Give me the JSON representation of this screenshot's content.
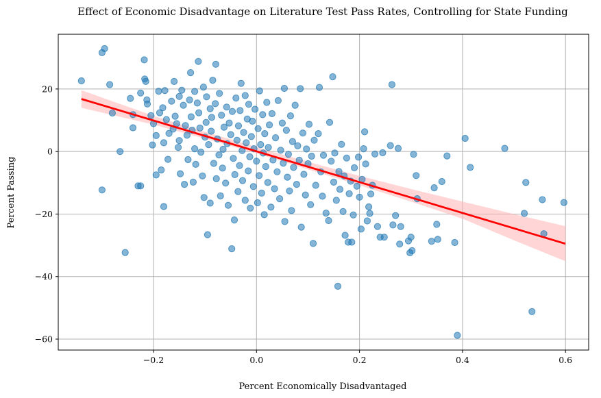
{
  "chart_data": {
    "type": "scatter",
    "title": "Effect of Economic Disadvantage on Literature Test Pass Rates, Controlling for State Funding",
    "xlabel": "Percent Economically Disadvantaged",
    "ylabel": "Percent Passing",
    "xlim": [
      -0.385,
      0.645
    ],
    "ylim": [
      -63.5,
      37.5
    ],
    "xticks": [
      -0.2,
      0.0,
      0.2,
      0.4,
      0.6
    ],
    "xtick_labels": [
      "−0.2",
      "0.0",
      "0.2",
      "0.4",
      "0.6"
    ],
    "yticks": [
      -60,
      -40,
      -20,
      0,
      20
    ],
    "ytick_labels": [
      "−60",
      "−40",
      "−20",
      "0",
      "20"
    ],
    "grid": true,
    "point_color": "#1f77b4",
    "fit_color": "#ff0000",
    "band_color": "#ffb3b3",
    "fit_line": {
      "x": [
        -0.34,
        0.6
      ],
      "y": [
        16.8,
        -29.5
      ]
    },
    "confidence_band": {
      "x": [
        -0.34,
        -0.2,
        -0.1,
        0.0,
        0.1,
        0.2,
        0.3,
        0.4,
        0.5,
        0.6
      ],
      "upper": [
        19.6,
        11.4,
        6.3,
        1.4,
        -3.3,
        -7.8,
        -12.0,
        -16.0,
        -20.0,
        -23.9
      ],
      "lower": [
        14.0,
        8.6,
        4.1,
        -0.6,
        -5.7,
        -10.8,
        -16.0,
        -21.5,
        -28.4,
        -35.1
      ]
    },
    "points": [
      [
        -0.34,
        22.6
      ],
      [
        -0.3,
        31.6
      ],
      [
        -0.295,
        32.9
      ],
      [
        -0.285,
        21.4
      ],
      [
        -0.28,
        12.3
      ],
      [
        -0.3,
        -12.3
      ],
      [
        -0.265,
        0
      ],
      [
        -0.255,
        -32.3
      ],
      [
        -0.245,
        17
      ],
      [
        -0.24,
        11.8
      ],
      [
        -0.24,
        7.6
      ],
      [
        -0.23,
        -11
      ],
      [
        -0.225,
        -11
      ],
      [
        -0.225,
        18.7
      ],
      [
        -0.218,
        29.3
      ],
      [
        -0.217,
        23.2
      ],
      [
        -0.215,
        22.4
      ],
      [
        -0.213,
        16.5
      ],
      [
        -0.212,
        15.2
      ],
      [
        -0.205,
        11.5
      ],
      [
        -0.2,
        8.9
      ],
      [
        -0.202,
        2.1
      ],
      [
        -0.195,
        -7.5
      ],
      [
        -0.195,
        5.1
      ],
      [
        -0.19,
        19.3
      ],
      [
        -0.188,
        12.4
      ],
      [
        -0.185,
        -5.9
      ],
      [
        -0.182,
        14
      ],
      [
        -0.18,
        -17.6
      ],
      [
        -0.18,
        2.8
      ],
      [
        -0.178,
        19.5
      ],
      [
        -0.175,
        10.2
      ],
      [
        -0.172,
        -2.5
      ],
      [
        -0.17,
        5.8
      ],
      [
        -0.165,
        16.1
      ],
      [
        -0.162,
        7.2
      ],
      [
        -0.16,
        22.4
      ],
      [
        -0.158,
        11.3
      ],
      [
        -0.155,
        8.9
      ],
      [
        -0.152,
        1.3
      ],
      [
        -0.15,
        17.6
      ],
      [
        -0.15,
        3.5
      ],
      [
        -0.148,
        -7.1
      ],
      [
        -0.145,
        19.6
      ],
      [
        -0.142,
        14.8
      ],
      [
        -0.14,
        -10.5
      ],
      [
        -0.138,
        8.3
      ],
      [
        -0.135,
        5.2
      ],
      [
        -0.133,
        -2.6
      ],
      [
        -0.13,
        16.5
      ],
      [
        -0.128,
        25.2
      ],
      [
        -0.127,
        11.1
      ],
      [
        -0.125,
        6.8
      ],
      [
        -0.123,
        -9.8
      ],
      [
        -0.12,
        0.9
      ],
      [
        -0.12,
        19.2
      ],
      [
        -0.118,
        -4.1
      ],
      [
        -0.115,
        15.5
      ],
      [
        -0.113,
        28.8
      ],
      [
        -0.112,
        12.4
      ],
      [
        -0.11,
        7.5
      ],
      [
        -0.108,
        -0.2
      ],
      [
        -0.105,
        -7.8
      ],
      [
        -0.103,
        20.6
      ],
      [
        -0.102,
        -14.7
      ],
      [
        -0.1,
        4.6
      ],
      [
        -0.098,
        9.3
      ],
      [
        -0.097,
        17.5
      ],
      [
        -0.095,
        -26.6
      ],
      [
        -0.093,
        2.2
      ],
      [
        -0.09,
        13.7
      ],
      [
        -0.09,
        -16.5
      ],
      [
        -0.088,
        6.5
      ],
      [
        -0.087,
        10.9
      ],
      [
        -0.085,
        22.8
      ],
      [
        -0.083,
        -3.8
      ],
      [
        -0.08,
        15.3
      ],
      [
        -0.079,
        27.9
      ],
      [
        -0.078,
        -8.7
      ],
      [
        -0.076,
        4
      ],
      [
        -0.073,
        -1.1
      ],
      [
        -0.072,
        18.6
      ],
      [
        -0.07,
        -14.2
      ],
      [
        -0.068,
        11.6
      ],
      [
        -0.066,
        -5.3
      ],
      [
        -0.065,
        0.7
      ],
      [
        -0.063,
        7.8
      ],
      [
        -0.06,
        -10.1
      ],
      [
        -0.058,
        14.2
      ],
      [
        -0.057,
        2.5
      ],
      [
        -0.055,
        -17.2
      ],
      [
        -0.053,
        9.1
      ],
      [
        -0.05,
        5.4
      ],
      [
        -0.048,
        -31.1
      ],
      [
        -0.047,
        12.8
      ],
      [
        -0.045,
        -2.2
      ],
      [
        -0.043,
        -21.9
      ],
      [
        -0.042,
        -7.4
      ],
      [
        -0.04,
        17.1
      ],
      [
        -0.038,
        3.6
      ],
      [
        -0.036,
        -12.8
      ],
      [
        -0.035,
        8.2
      ],
      [
        -0.033,
        -4.5
      ],
      [
        -0.032,
        13.1
      ],
      [
        -0.03,
        21.8
      ],
      [
        -0.028,
        0.3
      ],
      [
        -0.027,
        -9.3
      ],
      [
        -0.025,
        6.1
      ],
      [
        -0.022,
        17.9
      ],
      [
        -0.022,
        -15.6
      ],
      [
        -0.02,
        2.8
      ],
      [
        -0.018,
        10.4
      ],
      [
        -0.016,
        -6.2
      ],
      [
        -0.015,
        15.1
      ],
      [
        -0.013,
        -1.7
      ],
      [
        -0.012,
        -18.1
      ],
      [
        -0.01,
        4.8
      ],
      [
        -0.008,
        9.7
      ],
      [
        -0.006,
        -11.2
      ],
      [
        -0.005,
        0.9
      ],
      [
        -0.003,
        13.5
      ],
      [
        0,
        -3.1
      ],
      [
        0.002,
        -16.4
      ],
      [
        0.003,
        7.3
      ],
      [
        0.005,
        -7.7
      ],
      [
        0.006,
        19.4
      ],
      [
        0.008,
        2.2
      ],
      [
        0.01,
        -13.3
      ],
      [
        0.012,
        11.8
      ],
      [
        0.013,
        -0.5
      ],
      [
        0.015,
        -20.2
      ],
      [
        0.016,
        5.7
      ],
      [
        0.018,
        -4.8
      ],
      [
        0.02,
        15.7
      ],
      [
        0.022,
        -9.9
      ],
      [
        0.023,
        1.3
      ],
      [
        0.025,
        8.5
      ],
      [
        0.028,
        -17.8
      ],
      [
        0.03,
        12.1
      ],
      [
        0.032,
        -2.7
      ],
      [
        0.035,
        -11.9
      ],
      [
        0.037,
        4.4
      ],
      [
        0.04,
        -6.5
      ],
      [
        0.042,
        16.3
      ],
      [
        0.045,
        -15.1
      ],
      [
        0.047,
        0.4
      ],
      [
        0.05,
        9.1
      ],
      [
        0.052,
        -3.7
      ],
      [
        0.054,
        20.2
      ],
      [
        0.055,
        -22.4
      ],
      [
        0.058,
        6.8
      ],
      [
        0.06,
        -8.2
      ],
      [
        0.062,
        -0.9
      ],
      [
        0.064,
        -12.6
      ],
      [
        0.066,
        11.4
      ],
      [
        0.068,
        -18.9
      ],
      [
        0.07,
        3.2
      ],
      [
        0.072,
        -5.1
      ],
      [
        0.075,
        14.8
      ],
      [
        0.078,
        -10.5
      ],
      [
        0.08,
        1.8
      ],
      [
        0.083,
        -2.8
      ],
      [
        0.085,
        20.1
      ],
      [
        0.087,
        -24.2
      ],
      [
        0.09,
        5.9
      ],
      [
        0.092,
        -7.3
      ],
      [
        0.095,
        -13.9
      ],
      [
        0.097,
        0.8
      ],
      [
        0.1,
        -3.9
      ],
      [
        0.102,
        8.7
      ],
      [
        0.105,
        -17
      ],
      [
        0.107,
        -1.5
      ],
      [
        0.11,
        -29.4
      ],
      [
        0.112,
        3.6
      ],
      [
        0.115,
        -10.8
      ],
      [
        0.12,
        5.7
      ],
      [
        0.122,
        20.5
      ],
      [
        0.125,
        -6.5
      ],
      [
        0.128,
        -14.3
      ],
      [
        0.13,
        -1.2
      ],
      [
        0.135,
        -19.7
      ],
      [
        0.14,
        -22.1
      ],
      [
        0.142,
        9.3
      ],
      [
        0.145,
        -3.1
      ],
      [
        0.148,
        23.9
      ],
      [
        0.15,
        -9.8
      ],
      [
        0.152,
        -0.5
      ],
      [
        0.155,
        -15.6
      ],
      [
        0.158,
        -43.1
      ],
      [
        0.16,
        -6.4
      ],
      [
        0.162,
        -12.1
      ],
      [
        0.165,
        2.3
      ],
      [
        0.168,
        -19.2
      ],
      [
        0.17,
        -7.8
      ],
      [
        0.172,
        -26.8
      ],
      [
        0.175,
        -2.1
      ],
      [
        0.178,
        -29
      ],
      [
        0.18,
        -13.5
      ],
      [
        0.183,
        -9.5
      ],
      [
        0.185,
        -29
      ],
      [
        0.188,
        -20.3
      ],
      [
        0.19,
        -5.2
      ],
      [
        0.195,
        -11.1
      ],
      [
        0.198,
        -1.8
      ],
      [
        0.2,
        -14.6
      ],
      [
        0.203,
        -24.8
      ],
      [
        0.205,
        -8.9
      ],
      [
        0.208,
        0.9
      ],
      [
        0.21,
        6.3
      ],
      [
        0.212,
        -4
      ],
      [
        0.215,
        -22.2
      ],
      [
        0.218,
        -17.7
      ],
      [
        0.22,
        -19.8
      ],
      [
        0.222,
        -13.6
      ],
      [
        0.225,
        -10.8
      ],
      [
        0.23,
        -0.8
      ],
      [
        0.235,
        -24
      ],
      [
        0.24,
        -27.4
      ],
      [
        0.245,
        -0.4
      ],
      [
        0.248,
        -27.4
      ],
      [
        0.26,
        1.9
      ],
      [
        0.263,
        21.4
      ],
      [
        0.265,
        -23.5
      ],
      [
        0.27,
        -20.5
      ],
      [
        0.275,
        1
      ],
      [
        0.278,
        -29.6
      ],
      [
        0.28,
        -24
      ],
      [
        0.295,
        -28.6
      ],
      [
        0.298,
        -32.4
      ],
      [
        0.3,
        -27.4
      ],
      [
        0.302,
        -31.7
      ],
      [
        0.305,
        -0.9
      ],
      [
        0.31,
        -7.7
      ],
      [
        0.312,
        -15.1
      ],
      [
        0.34,
        -28.7
      ],
      [
        0.345,
        -11.6
      ],
      [
        0.35,
        -23.3
      ],
      [
        0.352,
        -28.1
      ],
      [
        0.36,
        -9.6
      ],
      [
        0.37,
        -1.4
      ],
      [
        0.385,
        -29.1
      ],
      [
        0.39,
        -58.8
      ],
      [
        0.405,
        4.2
      ],
      [
        0.415,
        -5.1
      ],
      [
        0.482,
        1
      ],
      [
        0.52,
        -19.8
      ],
      [
        0.523,
        -9.9
      ],
      [
        0.535,
        -51.2
      ],
      [
        0.555,
        -15.4
      ],
      [
        0.558,
        -26.3
      ],
      [
        0.597,
        -16.3
      ]
    ]
  }
}
